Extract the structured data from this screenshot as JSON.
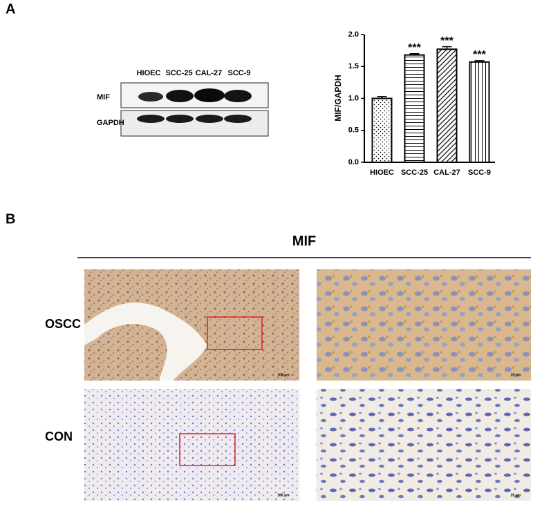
{
  "panel_labels": [
    "A",
    "B"
  ],
  "blot": {
    "lanes": [
      "HIOEC",
      "SCC-25",
      "CAL-27",
      "SCC-9"
    ],
    "rows": [
      "MIF",
      "GAPDH"
    ]
  },
  "chart_data": {
    "type": "bar",
    "ylabel": "MIF/GAPDH",
    "categories": [
      "HIOEC",
      "SCC-25",
      "CAL-27",
      "SCC-9"
    ],
    "values": [
      1.0,
      1.68,
      1.77,
      1.57
    ],
    "errors": [
      0.03,
      0.02,
      0.04,
      0.02
    ],
    "annotations": [
      null,
      "***",
      "***",
      "***"
    ],
    "hatches": [
      "dots",
      "horizontal",
      "diagonal",
      "vertical"
    ],
    "color": "#000000",
    "ylim": [
      0,
      2
    ],
    "yticks": [
      {
        "value": 0,
        "label": "0.0"
      },
      {
        "value": 0.5,
        "label": "0.5"
      },
      {
        "value": 1,
        "label": "1.0"
      },
      {
        "value": 1.5,
        "label": "1.5"
      },
      {
        "value": 2,
        "label": "2.0"
      }
    ]
  },
  "histology": {
    "stain": "MIF",
    "rows": [
      "OSCC",
      "CON"
    ],
    "scale_bars": [
      "100 μm",
      "20 μm"
    ]
  }
}
